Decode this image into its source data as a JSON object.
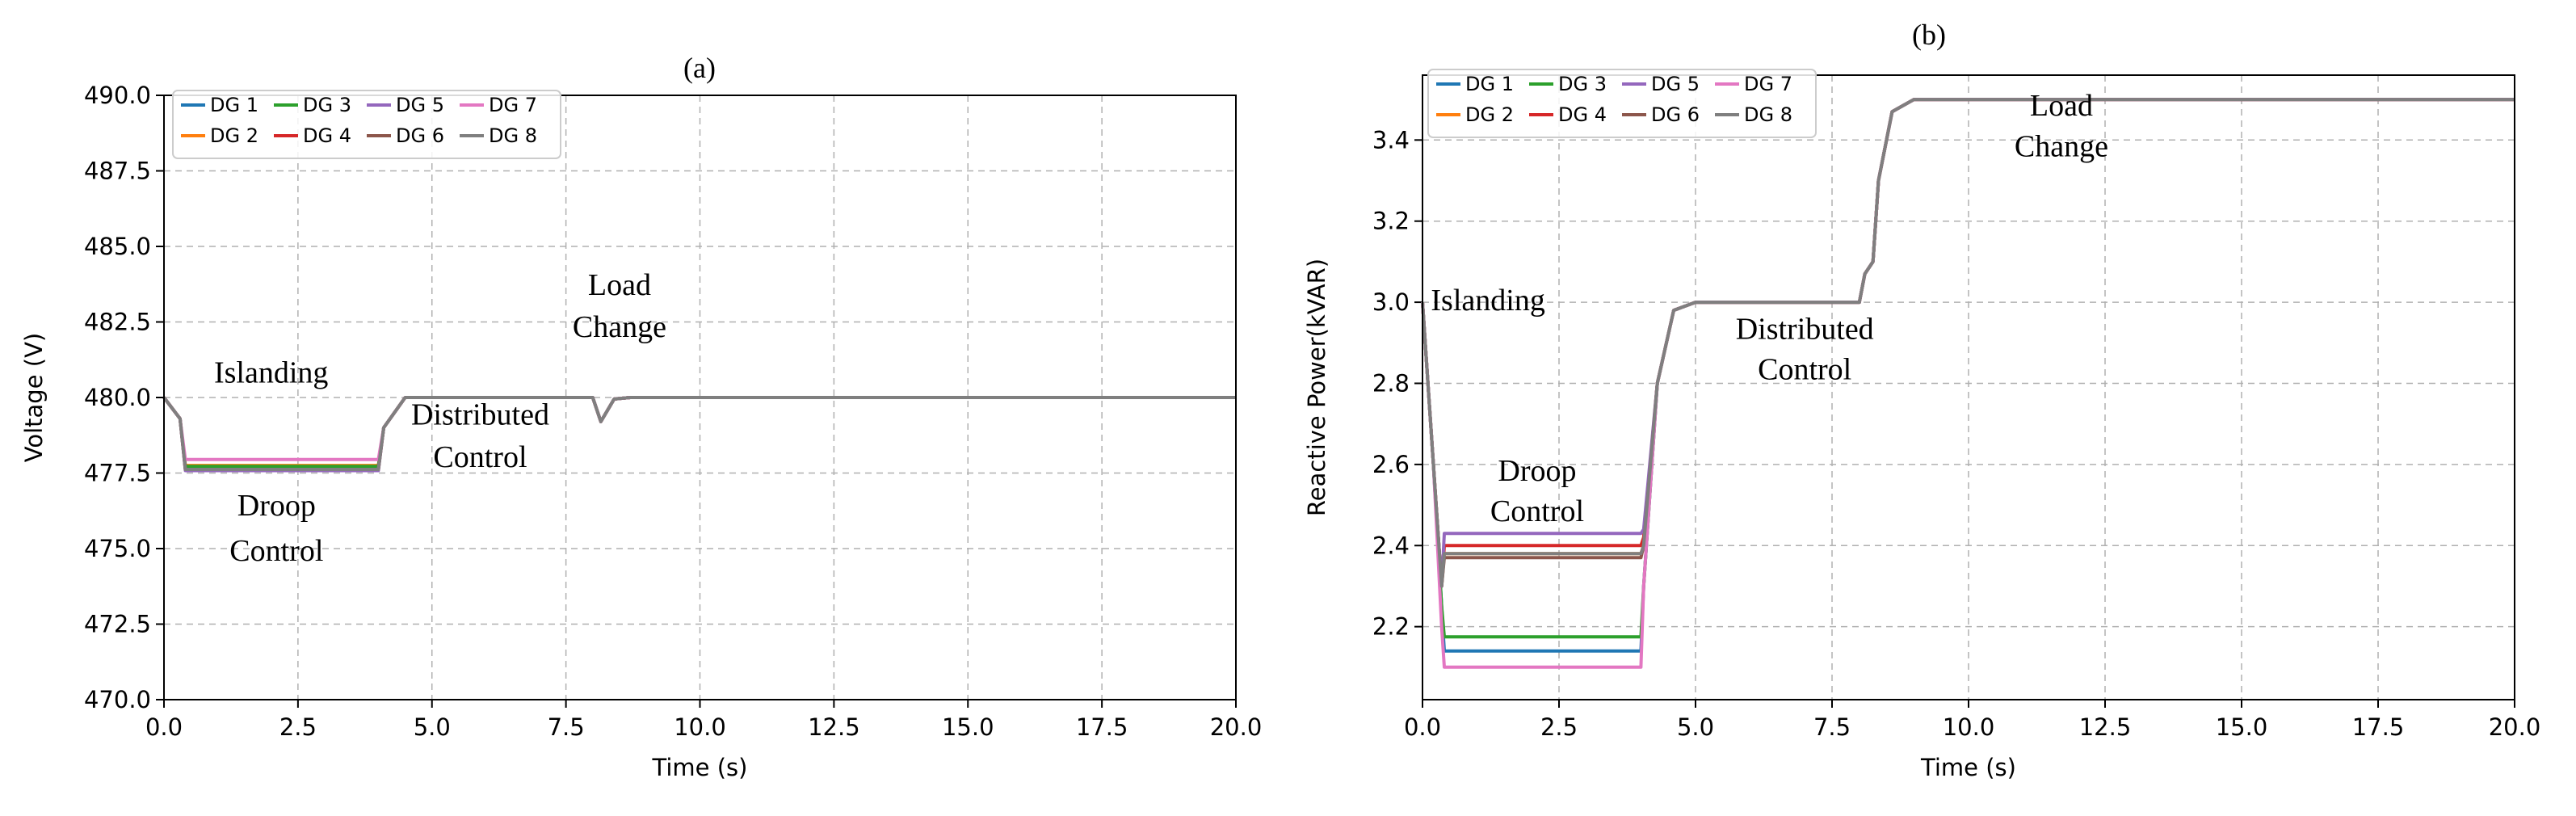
{
  "chart_data": [
    {
      "type": "line",
      "title": "(a)",
      "xlabel": "Time (s)",
      "ylabel": "Voltage (V)",
      "xlim": [
        0,
        20
      ],
      "ylim": [
        470,
        490
      ],
      "xticks": [
        "0.0",
        "2.5",
        "5.0",
        "7.5",
        "10.0",
        "12.5",
        "15.0",
        "17.5",
        "20.0"
      ],
      "yticks": [
        "470.0",
        "472.5",
        "475.0",
        "477.5",
        "480.0",
        "482.5",
        "485.0",
        "487.5",
        "490.0"
      ],
      "grid": true,
      "legend_position": "top-left",
      "legend_columns": 4,
      "annotations": [
        {
          "text": "Islanding",
          "x": 2.0,
          "y": 480.5
        },
        {
          "text": "Droop",
          "x": 2.1,
          "y": 476.1
        },
        {
          "text": "Control",
          "x": 2.1,
          "y": 474.6
        },
        {
          "text": "Distributed",
          "x": 5.9,
          "y": 479.1
        },
        {
          "text": "Control",
          "x": 5.9,
          "y": 477.7
        },
        {
          "text": "Load",
          "x": 8.5,
          "y": 483.4
        },
        {
          "text": "Change",
          "x": 8.5,
          "y": 482.0
        }
      ],
      "series": [
        {
          "name": "DG 1",
          "color": "#1f77b4",
          "points": [
            [
              0,
              480.0
            ],
            [
              0.3,
              479.3
            ],
            [
              0.4,
              477.7
            ],
            [
              4.0,
              477.7
            ],
            [
              4.1,
              479.0
            ],
            [
              4.5,
              480.0
            ],
            [
              8.0,
              480.0
            ],
            [
              8.15,
              479.2
            ],
            [
              8.4,
              479.95
            ],
            [
              8.7,
              480.0
            ],
            [
              20,
              480.0
            ]
          ]
        },
        {
          "name": "DG 2",
          "color": "#ff7f0e",
          "points": [
            [
              0,
              480.0
            ],
            [
              0.3,
              479.3
            ],
            [
              0.4,
              477.75
            ],
            [
              4.0,
              477.75
            ],
            [
              4.1,
              479.0
            ],
            [
              4.5,
              480.0
            ],
            [
              8.0,
              480.0
            ],
            [
              8.15,
              479.2
            ],
            [
              8.4,
              479.95
            ],
            [
              8.7,
              480.0
            ],
            [
              20,
              480.0
            ]
          ]
        },
        {
          "name": "DG 3",
          "color": "#2ca02c",
          "points": [
            [
              0,
              480.0
            ],
            [
              0.3,
              479.3
            ],
            [
              0.4,
              477.72
            ],
            [
              4.0,
              477.72
            ],
            [
              4.1,
              479.0
            ],
            [
              4.5,
              480.0
            ],
            [
              8.0,
              480.0
            ],
            [
              8.15,
              479.2
            ],
            [
              8.4,
              479.95
            ],
            [
              8.7,
              480.0
            ],
            [
              20,
              480.0
            ]
          ]
        },
        {
          "name": "DG 4",
          "color": "#d62728",
          "points": [
            [
              0,
              480.0
            ],
            [
              0.3,
              479.3
            ],
            [
              0.4,
              477.6
            ],
            [
              4.0,
              477.6
            ],
            [
              4.1,
              479.0
            ],
            [
              4.5,
              480.0
            ],
            [
              8.0,
              480.0
            ],
            [
              8.15,
              479.2
            ],
            [
              8.4,
              479.95
            ],
            [
              8.7,
              480.0
            ],
            [
              20,
              480.0
            ]
          ]
        },
        {
          "name": "DG 5",
          "color": "#9467bd",
          "points": [
            [
              0,
              480.0
            ],
            [
              0.3,
              479.3
            ],
            [
              0.4,
              477.58
            ],
            [
              4.0,
              477.58
            ],
            [
              4.1,
              479.0
            ],
            [
              4.5,
              480.0
            ],
            [
              8.0,
              480.0
            ],
            [
              8.15,
              479.2
            ],
            [
              8.4,
              479.95
            ],
            [
              8.7,
              480.0
            ],
            [
              20,
              480.0
            ]
          ]
        },
        {
          "name": "DG 6",
          "color": "#8c564b",
          "points": [
            [
              0,
              480.0
            ],
            [
              0.3,
              479.3
            ],
            [
              0.4,
              477.62
            ],
            [
              4.0,
              477.62
            ],
            [
              4.1,
              479.0
            ],
            [
              4.5,
              480.0
            ],
            [
              8.0,
              480.0
            ],
            [
              8.15,
              479.2
            ],
            [
              8.4,
              479.95
            ],
            [
              8.7,
              480.0
            ],
            [
              20,
              480.0
            ]
          ]
        },
        {
          "name": "DG 7",
          "color": "#e377c2",
          "points": [
            [
              0,
              480.0
            ],
            [
              0.3,
              479.3
            ],
            [
              0.4,
              477.95
            ],
            [
              4.0,
              477.95
            ],
            [
              4.1,
              479.0
            ],
            [
              4.5,
              480.0
            ],
            [
              8.0,
              480.0
            ],
            [
              8.15,
              479.2
            ],
            [
              8.4,
              479.95
            ],
            [
              8.7,
              480.0
            ],
            [
              20,
              480.0
            ]
          ]
        },
        {
          "name": "DG 8",
          "color": "#7f7f7f",
          "points": [
            [
              0,
              480.0
            ],
            [
              0.3,
              479.3
            ],
            [
              0.4,
              477.62
            ],
            [
              4.0,
              477.62
            ],
            [
              4.1,
              479.0
            ],
            [
              4.5,
              480.0
            ],
            [
              8.0,
              480.0
            ],
            [
              8.15,
              479.2
            ],
            [
              8.4,
              479.95
            ],
            [
              8.7,
              480.0
            ],
            [
              20,
              480.0
            ]
          ]
        }
      ]
    },
    {
      "type": "line",
      "title": "(b)",
      "xlabel": "Time (s)",
      "ylabel": "Reactive Power(kVAR)",
      "xlim": [
        0,
        20
      ],
      "ylim": [
        2.02,
        3.56
      ],
      "xticks": [
        "0.0",
        "2.5",
        "5.0",
        "7.5",
        "10.0",
        "12.5",
        "15.0",
        "17.5",
        "20.0"
      ],
      "yticks": [
        "2.2",
        "2.4",
        "2.6",
        "2.8",
        "3.0",
        "3.2",
        "3.4"
      ],
      "grid": true,
      "legend_position": "top-left",
      "legend_columns": 4,
      "annotations": [
        {
          "text": "Islanding",
          "x": 1.2,
          "y": 2.98
        },
        {
          "text": "Droop",
          "x": 2.1,
          "y": 2.56
        },
        {
          "text": "Control",
          "x": 2.1,
          "y": 2.46
        },
        {
          "text": "Distributed",
          "x": 7.0,
          "y": 2.91
        },
        {
          "text": "Control",
          "x": 7.0,
          "y": 2.81
        },
        {
          "text": "Load",
          "x": 11.7,
          "y": 3.46
        },
        {
          "text": "Change",
          "x": 11.7,
          "y": 3.36
        }
      ],
      "series": [
        {
          "name": "DG 1",
          "color": "#1f77b4",
          "points": [
            [
              0,
              3.0
            ],
            [
              0.2,
              2.6
            ],
            [
              0.35,
              2.25
            ],
            [
              0.4,
              2.14
            ],
            [
              4.0,
              2.14
            ],
            [
              4.05,
              2.3
            ],
            [
              4.3,
              2.8
            ],
            [
              4.6,
              2.98
            ],
            [
              5.0,
              3.0
            ],
            [
              8.0,
              3.0
            ],
            [
              8.1,
              3.07
            ],
            [
              8.25,
              3.1
            ],
            [
              8.35,
              3.3
            ],
            [
              8.6,
              3.47
            ],
            [
              9.0,
              3.5
            ],
            [
              20,
              3.5
            ]
          ]
        },
        {
          "name": "DG 2",
          "color": "#ff7f0e",
          "points": [
            [
              0,
              3.0
            ],
            [
              0.2,
              2.6
            ],
            [
              0.35,
              2.3
            ],
            [
              0.4,
              2.38
            ],
            [
              4.0,
              2.38
            ],
            [
              4.05,
              2.4
            ],
            [
              4.3,
              2.8
            ],
            [
              4.6,
              2.98
            ],
            [
              5.0,
              3.0
            ],
            [
              8.0,
              3.0
            ],
            [
              8.1,
              3.07
            ],
            [
              8.25,
              3.1
            ],
            [
              8.35,
              3.3
            ],
            [
              8.6,
              3.47
            ],
            [
              9.0,
              3.5
            ],
            [
              20,
              3.5
            ]
          ]
        },
        {
          "name": "DG 3",
          "color": "#2ca02c",
          "points": [
            [
              0,
              3.0
            ],
            [
              0.2,
              2.6
            ],
            [
              0.35,
              2.25
            ],
            [
              0.4,
              2.175
            ],
            [
              4.0,
              2.175
            ],
            [
              4.05,
              2.3
            ],
            [
              4.3,
              2.8
            ],
            [
              4.6,
              2.98
            ],
            [
              5.0,
              3.0
            ],
            [
              8.0,
              3.0
            ],
            [
              8.1,
              3.07
            ],
            [
              8.25,
              3.1
            ],
            [
              8.35,
              3.3
            ],
            [
              8.6,
              3.47
            ],
            [
              9.0,
              3.5
            ],
            [
              20,
              3.5
            ]
          ]
        },
        {
          "name": "DG 4",
          "color": "#d62728",
          "points": [
            [
              0,
              3.0
            ],
            [
              0.2,
              2.6
            ],
            [
              0.35,
              2.3
            ],
            [
              0.4,
              2.4
            ],
            [
              4.0,
              2.4
            ],
            [
              4.05,
              2.42
            ],
            [
              4.3,
              2.8
            ],
            [
              4.6,
              2.98
            ],
            [
              5.0,
              3.0
            ],
            [
              8.0,
              3.0
            ],
            [
              8.1,
              3.07
            ],
            [
              8.25,
              3.1
            ],
            [
              8.35,
              3.3
            ],
            [
              8.6,
              3.47
            ],
            [
              9.0,
              3.5
            ],
            [
              20,
              3.5
            ]
          ]
        },
        {
          "name": "DG 5",
          "color": "#9467bd",
          "points": [
            [
              0,
              3.0
            ],
            [
              0.2,
              2.6
            ],
            [
              0.35,
              2.3
            ],
            [
              0.4,
              2.43
            ],
            [
              4.0,
              2.43
            ],
            [
              4.05,
              2.44
            ],
            [
              4.3,
              2.8
            ],
            [
              4.6,
              2.98
            ],
            [
              5.0,
              3.0
            ],
            [
              8.0,
              3.0
            ],
            [
              8.1,
              3.07
            ],
            [
              8.25,
              3.1
            ],
            [
              8.35,
              3.3
            ],
            [
              8.6,
              3.47
            ],
            [
              9.0,
              3.5
            ],
            [
              20,
              3.5
            ]
          ]
        },
        {
          "name": "DG 6",
          "color": "#8c564b",
          "points": [
            [
              0,
              3.0
            ],
            [
              0.2,
              2.6
            ],
            [
              0.35,
              2.3
            ],
            [
              0.4,
              2.37
            ],
            [
              4.0,
              2.37
            ],
            [
              4.05,
              2.4
            ],
            [
              4.3,
              2.8
            ],
            [
              4.6,
              2.98
            ],
            [
              5.0,
              3.0
            ],
            [
              8.0,
              3.0
            ],
            [
              8.1,
              3.07
            ],
            [
              8.25,
              3.1
            ],
            [
              8.35,
              3.3
            ],
            [
              8.6,
              3.47
            ],
            [
              9.0,
              3.5
            ],
            [
              20,
              3.5
            ]
          ]
        },
        {
          "name": "DG 7",
          "color": "#e377c2",
          "points": [
            [
              0,
              3.0
            ],
            [
              0.2,
              2.6
            ],
            [
              0.35,
              2.2
            ],
            [
              0.4,
              2.1
            ],
            [
              4.0,
              2.1
            ],
            [
              4.05,
              2.3
            ],
            [
              4.3,
              2.8
            ],
            [
              4.6,
              2.98
            ],
            [
              5.0,
              3.0
            ],
            [
              8.0,
              3.0
            ],
            [
              8.1,
              3.07
            ],
            [
              8.25,
              3.1
            ],
            [
              8.35,
              3.3
            ],
            [
              8.6,
              3.47
            ],
            [
              9.0,
              3.5
            ],
            [
              20,
              3.5
            ]
          ]
        },
        {
          "name": "DG 8",
          "color": "#7f7f7f",
          "points": [
            [
              0,
              3.0
            ],
            [
              0.2,
              2.6
            ],
            [
              0.35,
              2.3
            ],
            [
              0.4,
              2.38
            ],
            [
              4.0,
              2.38
            ],
            [
              4.05,
              2.4
            ],
            [
              4.3,
              2.8
            ],
            [
              4.6,
              2.98
            ],
            [
              5.0,
              3.0
            ],
            [
              8.0,
              3.0
            ],
            [
              8.1,
              3.07
            ],
            [
              8.25,
              3.1
            ],
            [
              8.35,
              3.3
            ],
            [
              8.6,
              3.47
            ],
            [
              9.0,
              3.5
            ],
            [
              20,
              3.5
            ]
          ]
        }
      ]
    }
  ]
}
